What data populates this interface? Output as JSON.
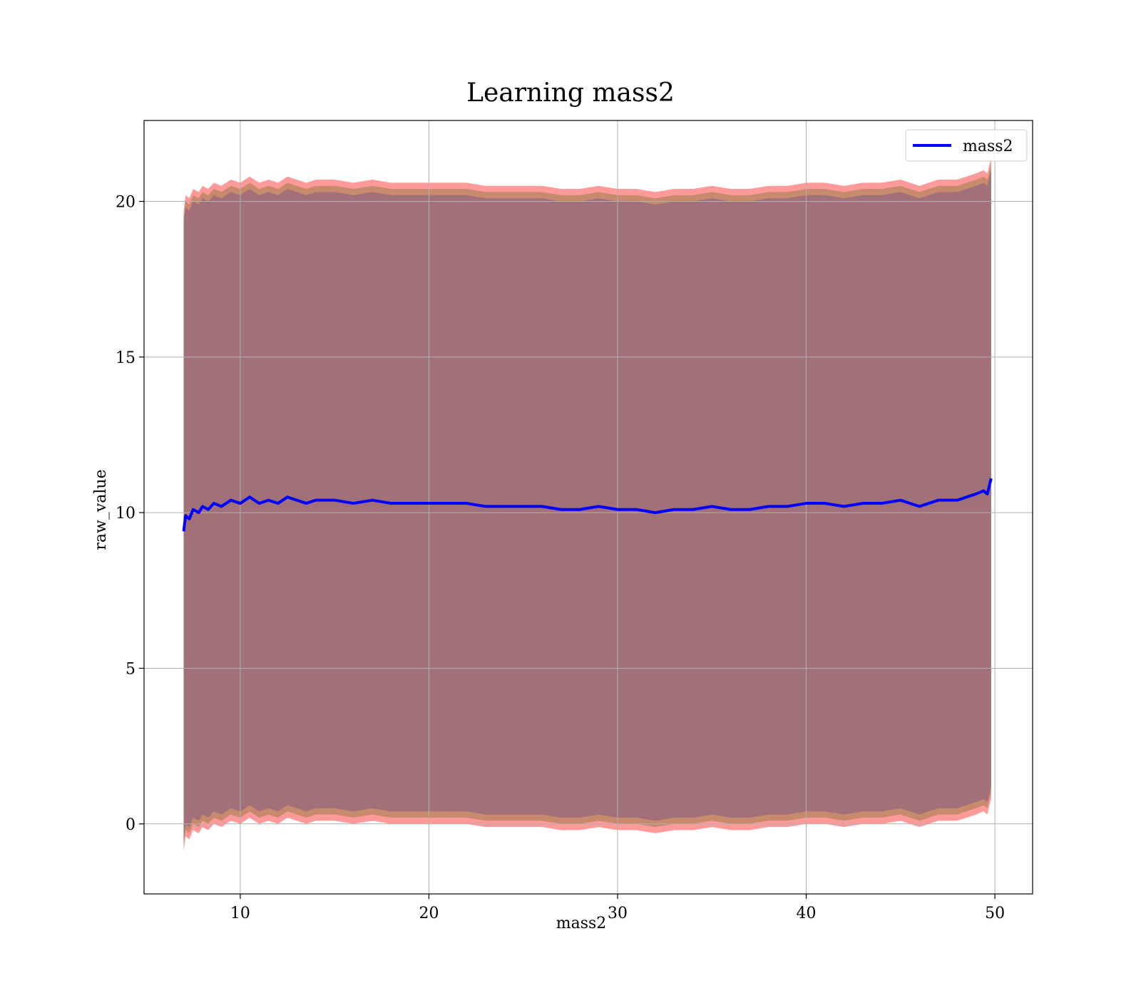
{
  "chart_data": {
    "type": "line",
    "title": "Learning mass2",
    "xlabel": "mass2",
    "ylabel": "raw_value",
    "xlim": [
      4.9,
      52.0
    ],
    "ylim": [
      -2.25,
      22.6
    ],
    "xticks": [
      10,
      20,
      30,
      40,
      50
    ],
    "yticks": [
      0,
      5,
      10,
      15,
      20
    ],
    "grid": true,
    "legend": {
      "placement": "top-right",
      "entries": [
        "mass2"
      ]
    },
    "colors": {
      "line": "#0000ff",
      "outer_band": "#ff9a9a",
      "mid_band": "#c88a6c",
      "inner_band": "#a17078",
      "grid": "#b0b0b0"
    },
    "series": [
      {
        "name": "mass2",
        "x": [
          7.0,
          7.1,
          7.3,
          7.5,
          7.8,
          8.0,
          8.3,
          8.6,
          9.0,
          9.5,
          10.0,
          10.5,
          11.0,
          11.5,
          12.0,
          12.5,
          13.0,
          13.5,
          14.0,
          15.0,
          16.0,
          17.0,
          18.0,
          19.0,
          20.0,
          21.0,
          22.0,
          23.0,
          24.0,
          25.0,
          26.0,
          27.0,
          28.0,
          29.0,
          30.0,
          31.0,
          32.0,
          33.0,
          34.0,
          35.0,
          36.0,
          37.0,
          38.0,
          39.0,
          40.0,
          41.0,
          42.0,
          43.0,
          44.0,
          45.0,
          46.0,
          47.0,
          48.0,
          49.0,
          49.4,
          49.6,
          49.8
        ],
        "y": [
          9.4,
          9.9,
          9.8,
          10.1,
          10.0,
          10.2,
          10.1,
          10.3,
          10.2,
          10.4,
          10.3,
          10.5,
          10.3,
          10.4,
          10.3,
          10.5,
          10.4,
          10.3,
          10.4,
          10.4,
          10.3,
          10.4,
          10.3,
          10.3,
          10.3,
          10.3,
          10.3,
          10.2,
          10.2,
          10.2,
          10.2,
          10.1,
          10.1,
          10.2,
          10.1,
          10.1,
          10.0,
          10.1,
          10.1,
          10.2,
          10.1,
          10.1,
          10.2,
          10.2,
          10.3,
          10.3,
          10.2,
          10.3,
          10.3,
          10.4,
          10.2,
          10.4,
          10.4,
          10.6,
          10.7,
          10.6,
          11.1
        ]
      }
    ],
    "bands": [
      {
        "name": "outer",
        "upper_offset": 10.3,
        "lower_offset": -10.3
      },
      {
        "name": "mid",
        "upper_offset": 10.1,
        "lower_offset": -10.1
      },
      {
        "name": "inner",
        "upper_offset": 9.9,
        "lower_offset": -9.9
      }
    ]
  }
}
